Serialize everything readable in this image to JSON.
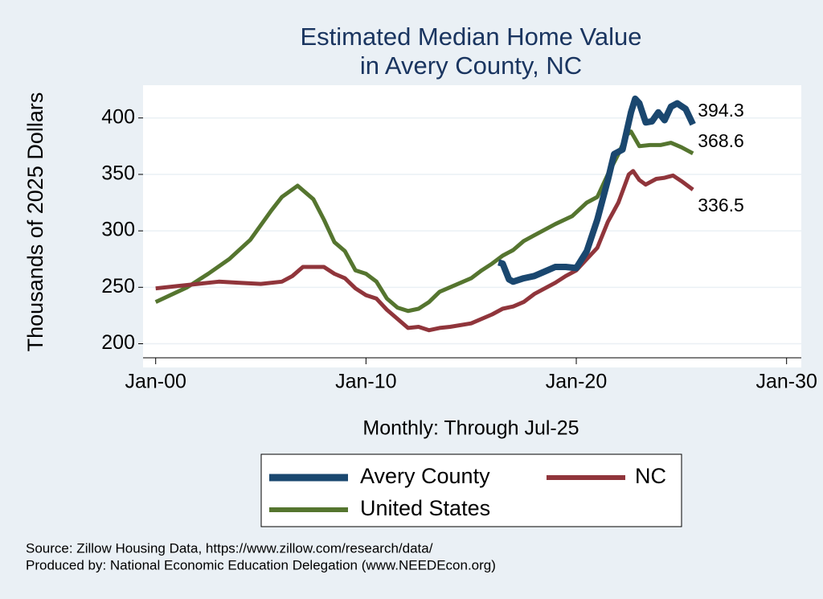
{
  "chart_data": {
    "type": "line",
    "title": [
      "Estimated Median Home Value",
      "in Avery County, NC"
    ],
    "y_label": "Thousands of 2025 Dollars",
    "x_label": "Monthly: Through Jul-25",
    "notes": [
      "Source: Zillow Housing Data, https://www.zillow.com/research/data/",
      "Produced by: National Economic Education Delegation (www.NEEDEcon.org)"
    ],
    "xlim": [
      1999.4,
      2030.7
    ],
    "xticks": [
      {
        "value": 2000,
        "label": "Jan-00"
      },
      {
        "value": 2010,
        "label": "Jan-10"
      },
      {
        "value": 2020,
        "label": "Jan-20"
      },
      {
        "value": 2030,
        "label": "Jan-30"
      }
    ],
    "ylim": [
      179,
      429
    ],
    "yticks": [
      200,
      250,
      300,
      350,
      400
    ],
    "grid": true,
    "series": [
      {
        "name": "Avery County",
        "color": "#1a476f",
        "x": [
          2016.3,
          2016.5,
          2016.8,
          2017,
          2017.5,
          2018,
          2018.5,
          2019,
          2019.5,
          2020,
          2020.5,
          2021,
          2021.5,
          2021.8,
          2022.2,
          2022.6,
          2022.8,
          2023,
          2023.3,
          2023.6,
          2023.9,
          2024.2,
          2024.5,
          2024.8,
          2025.2,
          2025.55
        ],
        "values": [
          272,
          271,
          257,
          255,
          258,
          260,
          264,
          268,
          268,
          267,
          282,
          310,
          345,
          368,
          372,
          405,
          417,
          413,
          396,
          397,
          405,
          398,
          410,
          413,
          408,
          394.3
        ]
      },
      {
        "name": "NC",
        "color": "#90353b",
        "x": [
          2000,
          2001,
          2002,
          2003,
          2004,
          2005,
          2006,
          2006.5,
          2007,
          2008,
          2008.5,
          2009,
          2009.5,
          2010,
          2010.5,
          2011,
          2011.5,
          2012,
          2012.5,
          2013,
          2013.5,
          2014,
          2015,
          2016,
          2016.5,
          2017,
          2017.5,
          2018,
          2019,
          2019.5,
          2020,
          2020.5,
          2021,
          2021.5,
          2022,
          2022.5,
          2022.7,
          2023,
          2023.3,
          2023.8,
          2024.2,
          2024.6,
          2025,
          2025.55
        ],
        "values": [
          249,
          251,
          253,
          255,
          254,
          253,
          255,
          260,
          268,
          268,
          262,
          258,
          249,
          243,
          240,
          230,
          222,
          214,
          215,
          212,
          214,
          215,
          218,
          226,
          231,
          233,
          237,
          244,
          254,
          260,
          265,
          275,
          285,
          308,
          325,
          350,
          353,
          345,
          341,
          346,
          347,
          349,
          344,
          336.5
        ]
      },
      {
        "name": "United States",
        "color": "#55752f",
        "x": [
          2000,
          2001.5,
          2002.5,
          2003.5,
          2004.5,
          2005.5,
          2006,
          2006.75,
          2007.5,
          2008,
          2008.5,
          2009,
          2009.5,
          2010,
          2010.5,
          2011,
          2011.5,
          2012,
          2012.5,
          2013,
          2013.5,
          2014,
          2015,
          2015.5,
          2016,
          2016.5,
          2017,
          2017.5,
          2018,
          2019,
          2019.8,
          2020.5,
          2021,
          2021.5,
          2022,
          2022.4,
          2022.6,
          2023,
          2023.5,
          2024,
          2024.5,
          2025,
          2025.55
        ],
        "values": [
          237,
          250,
          262,
          275,
          292,
          318,
          330,
          340,
          328,
          310,
          290,
          282,
          265,
          262,
          255,
          240,
          232,
          229,
          231,
          237,
          246,
          250,
          258,
          265,
          271,
          278,
          283,
          291,
          296,
          306,
          313,
          325,
          330,
          350,
          368,
          385,
          388,
          375,
          376,
          376,
          378,
          374,
          368.6
        ]
      }
    ]
  }
}
